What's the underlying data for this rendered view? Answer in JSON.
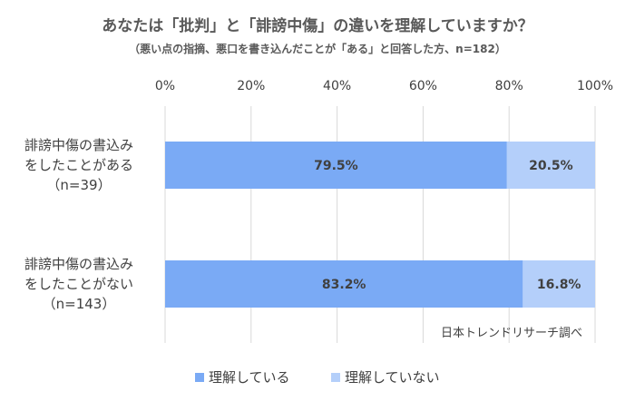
{
  "chart_data": {
    "type": "bar",
    "orientation": "horizontal",
    "stacked": true,
    "percent_stacked": true,
    "title": "あなたは「批判」と「誹謗中傷」の違いを理解していますか？",
    "subtitle": "（悪い点の指摘、悪口を書き込んだことが「ある」と回答した方、n=182）",
    "categories": [
      {
        "lines": [
          "誹謗中傷の書込み",
          "をしたことがある",
          "（n=39）"
        ]
      },
      {
        "lines": [
          "誹謗中傷の書込み",
          "をしたことがない",
          "（n=143）"
        ]
      }
    ],
    "series": [
      {
        "name": "理解している",
        "color": "#7aaaf5",
        "values": [
          79.5,
          83.2
        ],
        "labels": [
          "79.5%",
          "83.2%"
        ]
      },
      {
        "name": "理解していない",
        "color": "#b4cffa",
        "values": [
          20.5,
          16.8
        ],
        "labels": [
          "20.5%",
          "16.8%"
        ]
      }
    ],
    "xlim": [
      0,
      100
    ],
    "x_ticks": [
      {
        "value": 0,
        "label": "0%"
      },
      {
        "value": 20,
        "label": "20%"
      },
      {
        "value": 40,
        "label": "40%"
      },
      {
        "value": 60,
        "label": "60%"
      },
      {
        "value": 80,
        "label": "80%"
      },
      {
        "value": 100,
        "label": "100%"
      }
    ],
    "grid": true,
    "grid_color": "#d9d9d9",
    "legend_position": "bottom",
    "source_note": "日本トレンドリサーチ調べ"
  }
}
